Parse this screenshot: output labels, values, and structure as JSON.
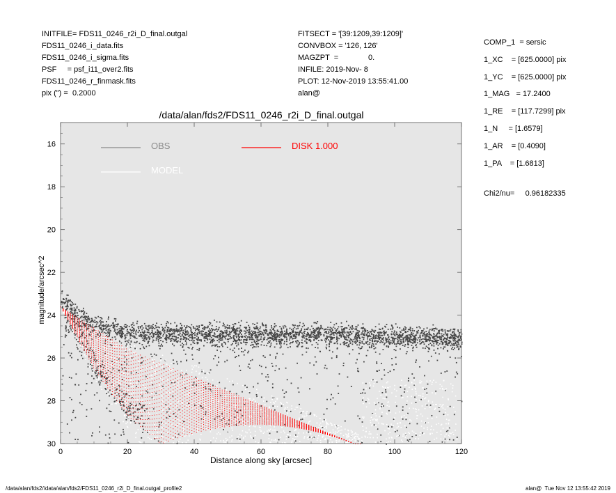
{
  "header_left": [
    "INITFILE= FDS11_0246_r2i_D_final.outgal",
    "FDS11_0246_i_data.fits",
    "FDS11_0246_i_sigma.fits",
    "PSF     = psf_i11_over2.fits",
    "FDS11_0246_r_finmask.fits",
    "pix (\") =  0.2000"
  ],
  "header_mid": [
    "FITSECT = '[39:1209,39:1209]'",
    "CONVBOX = '126, 126'",
    "MAGZPT  =              0.",
    "INFILE: 2019-Nov- 8",
    "PLOT: 12-Nov-2019 13:55:41.00",
    "alan@"
  ],
  "header_right": [
    "COMP_1  = sersic",
    "1_XC    = [625.0000] pix",
    "1_YC    = [625.0000] pix",
    "1_MAG   = 17.2400",
    "1_RE    = [117.7299] pix",
    "1_N     = [1.6579]",
    "1_AR    = [0.4090]",
    "1_PA    = [1.6813]"
  ],
  "chi2_label": "Chi2/nu=",
  "chi2_value": "0.96182335",
  "footer_left": "/data/alan/fds2//data/alan/fds2/FDS11_0246_r2i_D_final.outgal_profile2",
  "footer_right": "alan@  Tue Nov 12 13:55:42 2019",
  "chart_data": {
    "type": "scatter",
    "title": "/data/alan/fds2/FDS11_0246_r2i_D_final.outgal",
    "xlabel": "Distance along sky [arcsec]",
    "ylabel": "magnitude/arcsec^2",
    "xlim": [
      0,
      120
    ],
    "ylim": [
      30,
      15
    ],
    "y_inverted": true,
    "xticks": [
      0,
      20,
      40,
      60,
      80,
      100,
      120
    ],
    "yticks": [
      16,
      18,
      20,
      22,
      24,
      26,
      28,
      30
    ],
    "background_color": "#e6e6e6",
    "legend_placement": "top",
    "series": [
      {
        "name": "OBS",
        "color": "#444444",
        "description_points": [
          [
            0,
            23.3
          ],
          [
            5,
            24.0
          ],
          [
            10,
            24.5
          ],
          [
            20,
            24.8
          ],
          [
            40,
            24.9
          ],
          [
            60,
            24.9
          ],
          [
            80,
            24.9
          ],
          [
            100,
            25.0
          ],
          [
            120,
            25.1
          ]
        ],
        "band_halfwidth": 0.45,
        "tail_bottom": [
          [
            2,
            24.8
          ],
          [
            10,
            27.0
          ],
          [
            20,
            28.8
          ],
          [
            30,
            30.0
          ]
        ]
      },
      {
        "name": "MODEL",
        "color": "#ffffff",
        "envelope_upper": [
          [
            0,
            23.6
          ],
          [
            20,
            25.3
          ],
          [
            40,
            26.3
          ],
          [
            60,
            27.5
          ],
          [
            80,
            28.9
          ],
          [
            90,
            29.6
          ]
        ],
        "envelope_lower": [
          [
            0,
            23.6
          ],
          [
            10,
            27.0
          ],
          [
            20,
            29.3
          ],
          [
            24,
            30.0
          ]
        ]
      },
      {
        "name": "DISK  1.000",
        "color": "#ff0000",
        "envelope_upper": [
          [
            0,
            23.6
          ],
          [
            20,
            25.6
          ],
          [
            40,
            26.9
          ],
          [
            60,
            28.2
          ],
          [
            80,
            29.5
          ],
          [
            88,
            30.0
          ]
        ],
        "envelope_lower": [
          [
            0,
            23.6
          ],
          [
            10,
            26.5
          ],
          [
            20,
            28.7
          ],
          [
            30,
            30.0
          ]
        ]
      }
    ],
    "legend": [
      {
        "label": "OBS",
        "color": "#8a8a8a"
      },
      {
        "label": "MODEL",
        "color": "#ffffff"
      },
      {
        "label": "DISK  1.000",
        "color": "#ff0000"
      }
    ]
  }
}
